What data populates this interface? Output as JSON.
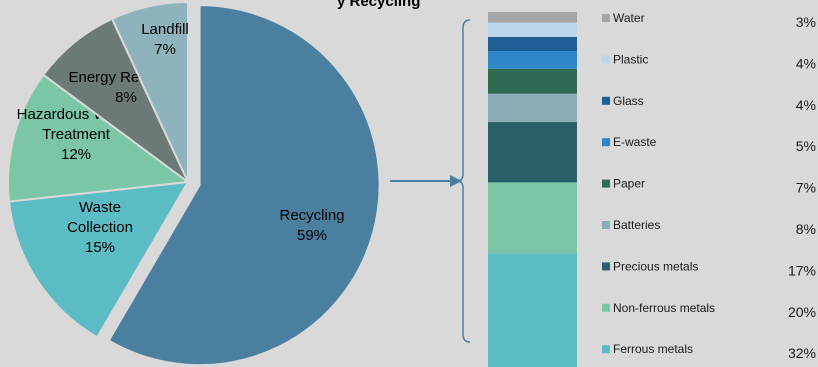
{
  "chart_data": [
    {
      "type": "pie",
      "exploded_slice": "Recycling",
      "slices": [
        {
          "label": "Recycling",
          "value": 59,
          "display": "59%",
          "color": "#4a7fa0"
        },
        {
          "label": "Waste Collection",
          "value": 15,
          "display": "15%",
          "color": "#5bbcc4"
        },
        {
          "label": "Hazardous Waste Treatment",
          "value": 12,
          "display": "12%",
          "color": "#7cc6a8"
        },
        {
          "label": "Energy Recovery",
          "value": 8,
          "display": "8%",
          "color": "#6b7a76"
        },
        {
          "label": "Landfill",
          "value": 7,
          "display": "7%",
          "color": "#8fb3bd"
        }
      ]
    },
    {
      "type": "bar",
      "stacked": true,
      "title_visible_fragment": "y Recycling",
      "series": [
        {
          "name": "Ferrous metals",
          "value": 32,
          "display": "32%",
          "color": "#5bbcc4"
        },
        {
          "name": "Non-ferrous metals",
          "value": 20,
          "display": "20%",
          "color": "#7cc6a8"
        },
        {
          "name": "Precious metals",
          "value": 17,
          "display": "17%",
          "color": "#2a6068"
        },
        {
          "name": "Batteries",
          "value": 8,
          "display": "8%",
          "color": "#8badb5"
        },
        {
          "name": "Paper",
          "value": 7,
          "display": "7%",
          "color": "#2f6b52"
        },
        {
          "name": "E-waste",
          "value": 5,
          "display": "5%",
          "color": "#2e86c9"
        },
        {
          "name": "Glass",
          "value": 4,
          "display": "4%",
          "color": "#1f5f96"
        },
        {
          "name": "Plastic",
          "value": 4,
          "display": "4%",
          "color": "#bcd6ec"
        },
        {
          "name": "Water",
          "value": 3,
          "display": "3%",
          "color": "#a6a6a6"
        }
      ]
    }
  ],
  "colors": {
    "background": "#d9d9d9",
    "connector": "#4a7fa0"
  }
}
